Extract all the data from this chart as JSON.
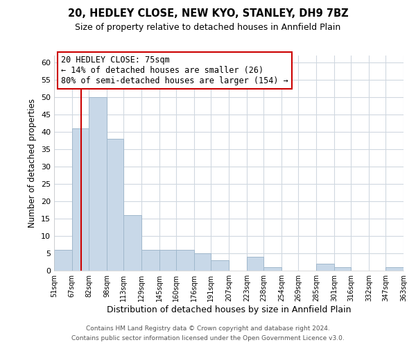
{
  "title": "20, HEDLEY CLOSE, NEW KYO, STANLEY, DH9 7BZ",
  "subtitle": "Size of property relative to detached houses in Annfield Plain",
  "xlabel": "Distribution of detached houses by size in Annfield Plain",
  "ylabel": "Number of detached properties",
  "bar_edges": [
    51,
    67,
    82,
    98,
    113,
    129,
    145,
    160,
    176,
    191,
    207,
    223,
    238,
    254,
    269,
    285,
    301,
    316,
    332,
    347,
    363
  ],
  "bar_heights": [
    6,
    41,
    50,
    38,
    16,
    6,
    6,
    6,
    5,
    3,
    0,
    4,
    1,
    0,
    0,
    2,
    1,
    0,
    0,
    1
  ],
  "bar_color": "#c8d8e8",
  "bar_edgecolor": "#a0b8cc",
  "property_line_x": 75,
  "property_line_color": "#cc0000",
  "ylim": [
    0,
    62
  ],
  "yticks": [
    0,
    5,
    10,
    15,
    20,
    25,
    30,
    35,
    40,
    45,
    50,
    55,
    60
  ],
  "annotation_title": "20 HEDLEY CLOSE: 75sqm",
  "annotation_line1": "← 14% of detached houses are smaller (26)",
  "annotation_line2": "80% of semi-detached houses are larger (154) →",
  "footer1": "Contains HM Land Registry data © Crown copyright and database right 2024.",
  "footer2": "Contains public sector information licensed under the Open Government Licence v3.0.",
  "tick_labels": [
    "51sqm",
    "67sqm",
    "82sqm",
    "98sqm",
    "113sqm",
    "129sqm",
    "145sqm",
    "160sqm",
    "176sqm",
    "191sqm",
    "207sqm",
    "223sqm",
    "238sqm",
    "254sqm",
    "269sqm",
    "285sqm",
    "301sqm",
    "316sqm",
    "332sqm",
    "347sqm",
    "363sqm"
  ],
  "background_color": "#ffffff",
  "grid_color": "#d0d8e0"
}
